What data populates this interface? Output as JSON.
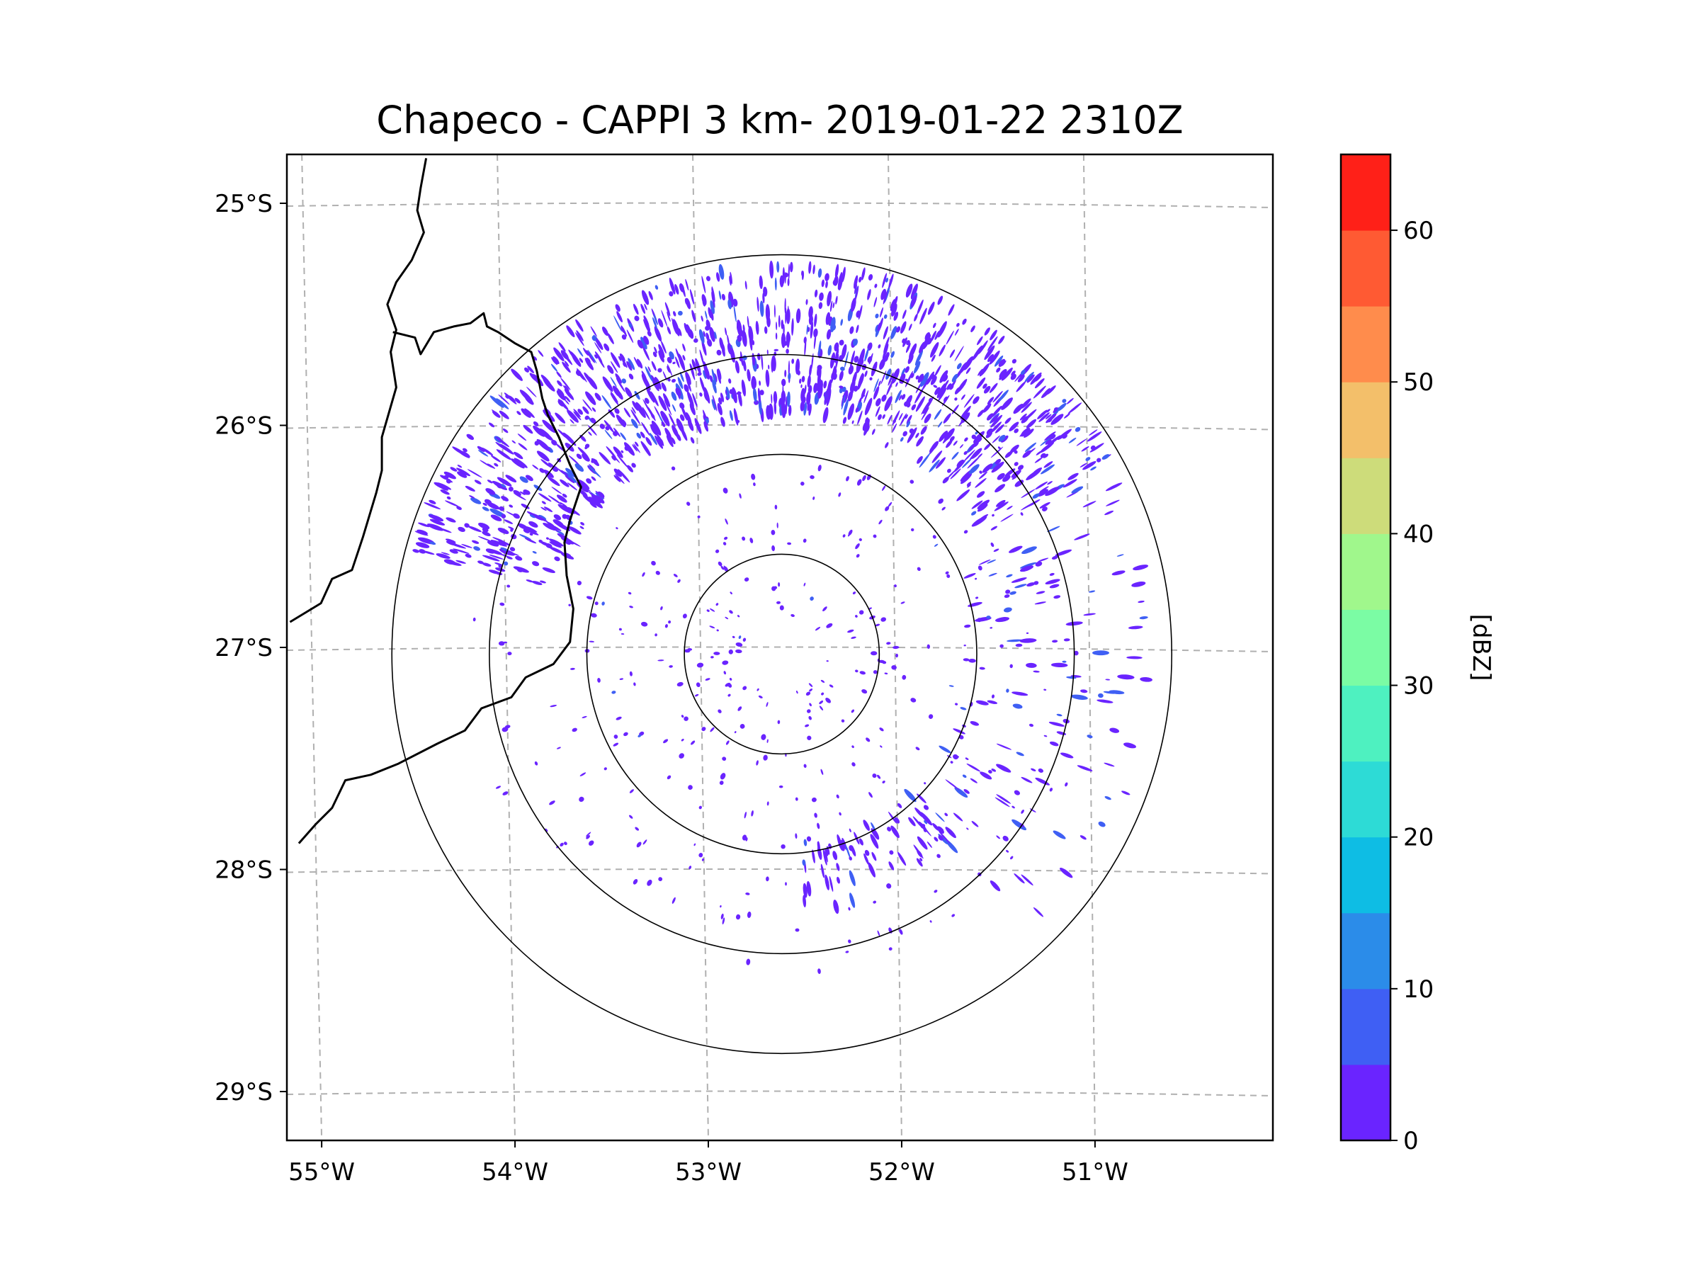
{
  "chart_data": {
    "type": "heatmap",
    "subtype": "radar-ppi-map",
    "title": "Chapeco - CAPPI 3 km- 2019-01-22 2310Z",
    "radar_site": "Chapeco",
    "product": "CAPPI 3 km",
    "datetime": "2019-01-22 2310Z",
    "map_extent": {
      "lon": [
        -55.18,
        -50.08
      ],
      "lat": [
        -29.22,
        -24.78
      ]
    },
    "radar_center": {
      "lon": -52.62,
      "lat": -27.03
    },
    "range_rings_km": [
      50,
      100,
      150,
      200
    ],
    "x_ticks": [
      {
        "value": -55,
        "label": "55°W"
      },
      {
        "value": -54,
        "label": "54°W"
      },
      {
        "value": -53,
        "label": "53°W"
      },
      {
        "value": -52,
        "label": "52°W"
      },
      {
        "value": -51,
        "label": "51°W"
      }
    ],
    "y_ticks": [
      {
        "value": -25,
        "label": "25°S"
      },
      {
        "value": -26,
        "label": "26°S"
      },
      {
        "value": -27,
        "label": "27°S"
      },
      {
        "value": -28,
        "label": "28°S"
      },
      {
        "value": -29,
        "label": "29°S"
      }
    ],
    "gridlines": true,
    "colorbar": {
      "label": "[dBZ]",
      "range": [
        0,
        65
      ],
      "ticks": [
        {
          "value": 0,
          "label": "0"
        },
        {
          "value": 10,
          "label": "10"
        },
        {
          "value": 20,
          "label": "20"
        },
        {
          "value": 30,
          "label": "30"
        },
        {
          "value": 40,
          "label": "40"
        },
        {
          "value": 50,
          "label": "50"
        },
        {
          "value": 60,
          "label": "60"
        }
      ],
      "bins": [
        {
          "from": 0,
          "to": 5,
          "color": "#6a24ff"
        },
        {
          "from": 5,
          "to": 10,
          "color": "#3f5ff4"
        },
        {
          "from": 10,
          "to": 15,
          "color": "#2b8ce9"
        },
        {
          "from": 15,
          "to": 20,
          "color": "#0ebde4"
        },
        {
          "from": 20,
          "to": 25,
          "color": "#2ddbd6"
        },
        {
          "from": 25,
          "to": 30,
          "color": "#4ef1c0"
        },
        {
          "from": 30,
          "to": 35,
          "color": "#7bfca4"
        },
        {
          "from": 35,
          "to": 40,
          "color": "#a0f78c"
        },
        {
          "from": 40,
          "to": 45,
          "color": "#cddc7a"
        },
        {
          "from": 45,
          "to": 50,
          "color": "#f3bf6a"
        },
        {
          "from": 50,
          "to": 55,
          "color": "#ff8c4c"
        },
        {
          "from": 55,
          "to": 60,
          "color": "#ff5a33"
        },
        {
          "from": 60,
          "to": 65,
          "color": "#ff2018"
        }
      ]
    },
    "echo_regions": [
      {
        "name": "northern arc",
        "dbz_typical": 3,
        "az_from": 285,
        "az_to": 60,
        "range_km": [
          120,
          195
        ]
      },
      {
        "name": "eastern mass",
        "dbz_typical": 5,
        "az_from": 55,
        "az_to": 140,
        "range_km": [
          95,
          190
        ]
      },
      {
        "name": "south-east arc",
        "dbz_typical": 3,
        "az_from": 135,
        "az_to": 175,
        "range_km": [
          95,
          130
        ]
      },
      {
        "name": "scattered interior",
        "dbz_typical": 2,
        "az_from": 0,
        "az_to": 360,
        "range_km": [
          20,
          160
        ]
      }
    ],
    "features": [
      "range rings",
      "state borders",
      "lat/lon gridlines"
    ]
  }
}
